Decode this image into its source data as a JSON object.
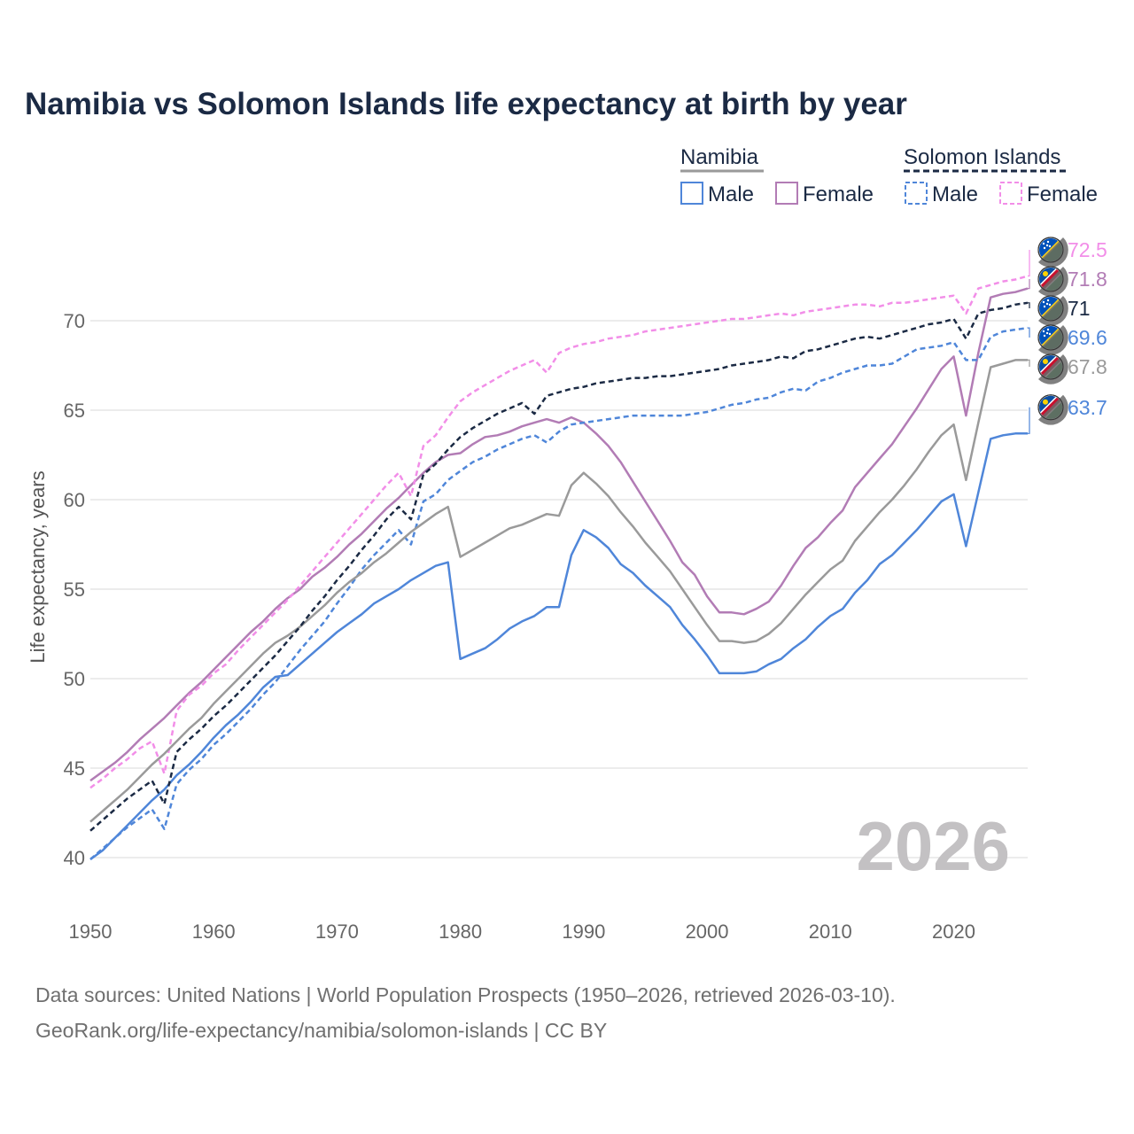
{
  "chart_data": {
    "type": "line",
    "title": "Namibia vs Solomon Islands life expectancy at birth by year",
    "ylabel": "Life expectancy, years",
    "xlabel": "",
    "xlim": [
      1950,
      2026
    ],
    "ylim": [
      38.5,
      73.5
    ],
    "x_ticks": [
      1950,
      1960,
      1970,
      1980,
      1990,
      2000,
      2010,
      2020
    ],
    "y_ticks": [
      40,
      45,
      50,
      55,
      60,
      65,
      70
    ],
    "x_tick_labels": [
      "1950",
      "1960",
      "1970",
      "1980",
      "1990",
      "2000",
      "2010",
      "2020"
    ],
    "y_tick_labels": [
      "40",
      "45",
      "50",
      "55",
      "60",
      "65",
      "70"
    ],
    "year_watermark": "2026",
    "legend": {
      "groups": [
        {
          "name": "Namibia",
          "entries": [
            "Male",
            "Female"
          ]
        },
        {
          "name": "Solomon Islands",
          "entries": [
            "Male",
            "Female"
          ]
        }
      ]
    },
    "x": [
      1950,
      1951,
      1952,
      1953,
      1954,
      1955,
      1956,
      1957,
      1958,
      1959,
      1960,
      1961,
      1962,
      1963,
      1964,
      1965,
      1966,
      1967,
      1968,
      1969,
      1970,
      1971,
      1972,
      1973,
      1974,
      1975,
      1976,
      1977,
      1978,
      1979,
      1980,
      1981,
      1982,
      1983,
      1984,
      1985,
      1986,
      1987,
      1988,
      1989,
      1990,
      1991,
      1992,
      1993,
      1994,
      1995,
      1996,
      1997,
      1998,
      1999,
      2000,
      2001,
      2002,
      2003,
      2004,
      2005,
      2006,
      2007,
      2008,
      2009,
      2010,
      2011,
      2012,
      2013,
      2014,
      2015,
      2016,
      2017,
      2018,
      2019,
      2020,
      2021,
      2022,
      2023,
      2024,
      2025,
      2026
    ],
    "series": [
      {
        "name": "Namibia Male",
        "country": "Namibia",
        "sex": "Male",
        "color": "#4f86d9",
        "dash": "solid",
        "end_label": "63.7",
        "values": [
          39.9,
          40.4,
          41.1,
          41.8,
          42.5,
          43.2,
          43.8,
          44.6,
          45.2,
          45.9,
          46.7,
          47.4,
          48.0,
          48.7,
          49.5,
          50.1,
          50.2,
          50.8,
          51.4,
          52.0,
          52.6,
          53.1,
          53.6,
          54.2,
          54.6,
          55.0,
          55.5,
          55.9,
          56.3,
          56.5,
          51.1,
          51.4,
          51.7,
          52.2,
          52.8,
          53.2,
          53.5,
          54.0,
          54.0,
          56.9,
          58.3,
          57.9,
          57.3,
          56.4,
          55.9,
          55.2,
          54.6,
          54.0,
          53.0,
          52.2,
          51.3,
          50.3,
          50.3,
          50.3,
          50.4,
          50.8,
          51.1,
          51.7,
          52.2,
          52.9,
          53.5,
          53.9,
          54.8,
          55.5,
          56.4,
          56.9,
          57.6,
          58.3,
          59.1,
          59.9,
          60.3,
          57.4,
          60.4,
          63.4,
          63.6,
          63.7,
          63.7
        ]
      },
      {
        "name": "Namibia Female",
        "country": "Namibia",
        "sex": "Female",
        "color": "#b27cb5",
        "dash": "solid",
        "end_label": "71.8",
        "values": [
          44.3,
          44.8,
          45.3,
          45.9,
          46.6,
          47.2,
          47.8,
          48.5,
          49.2,
          49.8,
          50.5,
          51.2,
          51.9,
          52.6,
          53.2,
          53.9,
          54.5,
          55.0,
          55.7,
          56.2,
          56.8,
          57.5,
          58.1,
          58.8,
          59.5,
          60.1,
          60.8,
          61.5,
          62.1,
          62.5,
          62.6,
          63.1,
          63.5,
          63.6,
          63.8,
          64.1,
          64.3,
          64.5,
          64.3,
          64.6,
          64.3,
          63.7,
          63.0,
          62.1,
          61.0,
          59.9,
          58.8,
          57.7,
          56.5,
          55.8,
          54.6,
          53.7,
          53.7,
          53.6,
          53.9,
          54.3,
          55.2,
          56.3,
          57.3,
          57.9,
          58.7,
          59.4,
          60.7,
          61.5,
          62.3,
          63.1,
          64.1,
          65.1,
          66.2,
          67.3,
          68.0,
          64.7,
          68.2,
          71.3,
          71.5,
          71.6,
          71.8
        ]
      },
      {
        "name": "Solomon Islands Male",
        "country": "Solomon Islands",
        "sex": "Male",
        "color": "#4f86d9",
        "dash": "dashed",
        "end_label": "69.6",
        "values": [
          39.9,
          40.5,
          41.1,
          41.7,
          42.2,
          42.7,
          41.6,
          44.1,
          44.9,
          45.5,
          46.3,
          46.9,
          47.6,
          48.3,
          49.1,
          49.8,
          50.7,
          51.6,
          52.4,
          53.2,
          54.2,
          55.1,
          56.1,
          56.9,
          57.6,
          58.3,
          57.5,
          59.9,
          60.3,
          61.1,
          61.6,
          62.1,
          62.4,
          62.8,
          63.1,
          63.4,
          63.6,
          63.2,
          63.8,
          64.2,
          64.3,
          64.4,
          64.5,
          64.6,
          64.7,
          64.7,
          64.7,
          64.7,
          64.7,
          64.8,
          64.9,
          65.1,
          65.3,
          65.4,
          65.6,
          65.7,
          66.0,
          66.2,
          66.1,
          66.6,
          66.8,
          67.1,
          67.3,
          67.5,
          67.5,
          67.6,
          68.0,
          68.4,
          68.5,
          68.6,
          68.8,
          67.8,
          67.8,
          69.1,
          69.4,
          69.5,
          69.6
        ]
      },
      {
        "name": "Solomon Islands Female",
        "country": "Solomon Islands",
        "sex": "Female",
        "color": "#f28ee8",
        "dash": "dashed",
        "end_label": "72.5",
        "values": [
          43.9,
          44.4,
          45.0,
          45.5,
          46.1,
          46.5,
          44.7,
          48.2,
          49.1,
          49.6,
          50.3,
          50.8,
          51.6,
          52.3,
          53.0,
          53.7,
          54.4,
          55.2,
          56.0,
          56.8,
          57.6,
          58.4,
          59.2,
          60.0,
          60.8,
          61.5,
          60.2,
          63.0,
          63.6,
          64.6,
          65.5,
          66.0,
          66.4,
          66.8,
          67.2,
          67.5,
          67.8,
          67.1,
          68.2,
          68.5,
          68.7,
          68.8,
          69.0,
          69.1,
          69.2,
          69.4,
          69.5,
          69.6,
          69.7,
          69.8,
          69.9,
          70.0,
          70.1,
          70.1,
          70.2,
          70.3,
          70.4,
          70.3,
          70.5,
          70.6,
          70.7,
          70.8,
          70.9,
          70.9,
          70.8,
          71.0,
          71.0,
          71.1,
          71.2,
          71.3,
          71.4,
          70.4,
          71.8,
          72.0,
          72.2,
          72.3,
          72.5
        ]
      },
      {
        "name": "Namibia Total",
        "country": "Namibia",
        "sex": "Total",
        "color": "#9a9a9a",
        "dash": "solid",
        "end_label": "67.8",
        "values": [
          42.0,
          42.6,
          43.2,
          43.8,
          44.5,
          45.2,
          45.8,
          46.5,
          47.2,
          47.8,
          48.6,
          49.3,
          50.0,
          50.7,
          51.4,
          52.0,
          52.4,
          52.9,
          53.5,
          54.1,
          54.8,
          55.4,
          55.9,
          56.5,
          57.0,
          57.6,
          58.2,
          58.7,
          59.2,
          59.6,
          56.8,
          57.2,
          57.6,
          58.0,
          58.4,
          58.6,
          58.9,
          59.2,
          59.1,
          60.8,
          61.5,
          60.9,
          60.2,
          59.3,
          58.5,
          57.6,
          56.8,
          56.0,
          55.0,
          54.0,
          53.0,
          52.1,
          52.1,
          52.0,
          52.1,
          52.5,
          53.1,
          53.9,
          54.7,
          55.4,
          56.1,
          56.6,
          57.7,
          58.5,
          59.3,
          60.0,
          60.8,
          61.7,
          62.7,
          63.6,
          64.2,
          61.1,
          64.3,
          67.4,
          67.6,
          67.8,
          67.8
        ]
      },
      {
        "name": "Solomon Islands Total",
        "country": "Solomon Islands",
        "sex": "Total",
        "color": "#1b2a44",
        "dash": "dashed",
        "end_label": "71",
        "values": [
          41.5,
          42.1,
          42.7,
          43.3,
          43.8,
          44.3,
          43.0,
          45.9,
          46.6,
          47.2,
          47.9,
          48.5,
          49.2,
          49.9,
          50.6,
          51.3,
          52.1,
          52.9,
          53.8,
          54.6,
          55.5,
          56.3,
          57.2,
          58.0,
          58.9,
          59.6,
          58.9,
          61.4,
          62.0,
          62.8,
          63.5,
          64.0,
          64.4,
          64.8,
          65.1,
          65.4,
          64.8,
          65.8,
          66.0,
          66.2,
          66.3,
          66.5,
          66.6,
          66.7,
          66.8,
          66.8,
          66.9,
          66.9,
          67.0,
          67.1,
          67.2,
          67.3,
          67.5,
          67.6,
          67.7,
          67.8,
          68.0,
          67.9,
          68.3,
          68.4,
          68.6,
          68.8,
          69.0,
          69.1,
          69.0,
          69.2,
          69.4,
          69.6,
          69.8,
          69.9,
          70.1,
          69.0,
          70.4,
          70.6,
          70.7,
          70.9,
          71.0
        ]
      }
    ]
  },
  "footer": {
    "line1": "Data sources: United Nations | World Population Prospects (1950–2026, retrieved 2026-03-10).",
    "line2": "GeoRank.org/life-expectancy/namibia/solomon-islands | CC BY"
  },
  "icons": {
    "namibia": "namibia-flag-icon",
    "solomon": "solomon-islands-flag-icon",
    "mask": "person-silhouette-icon"
  },
  "colors": {
    "title": "#1b2a44",
    "grid": "#e6e6e6",
    "namibia_flag_red": "#c8102e",
    "namibia_flag_blue": "#0a4da2",
    "solomon_flag_blue": "#0051ba",
    "solomon_flag_green": "#1a7a3a"
  }
}
